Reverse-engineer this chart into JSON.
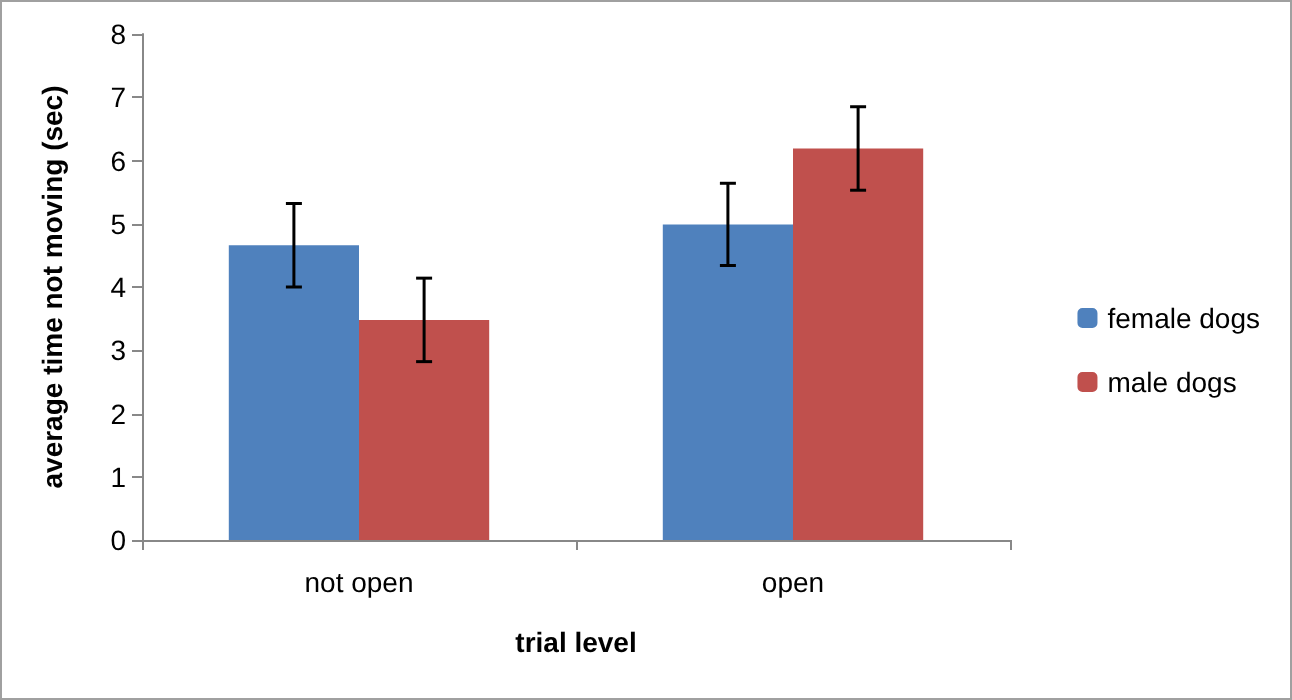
{
  "chart_data": {
    "type": "bar",
    "xlabel": "trial level",
    "ylabel": "average time not moving (sec)",
    "categories": [
      "not open",
      "open"
    ],
    "series": [
      {
        "name": "female dogs",
        "color": "#4f81bd",
        "values": [
          4.66,
          4.99
        ],
        "errors": [
          0.66,
          0.65
        ]
      },
      {
        "name": "male dogs",
        "color": "#c0504d",
        "values": [
          3.48,
          6.19
        ],
        "errors": [
          0.66,
          0.66
        ]
      }
    ],
    "ylim": [
      0,
      8
    ],
    "yticks": [
      0,
      1,
      2,
      3,
      4,
      5,
      6,
      7,
      8
    ],
    "grid": false,
    "legend": "right"
  }
}
